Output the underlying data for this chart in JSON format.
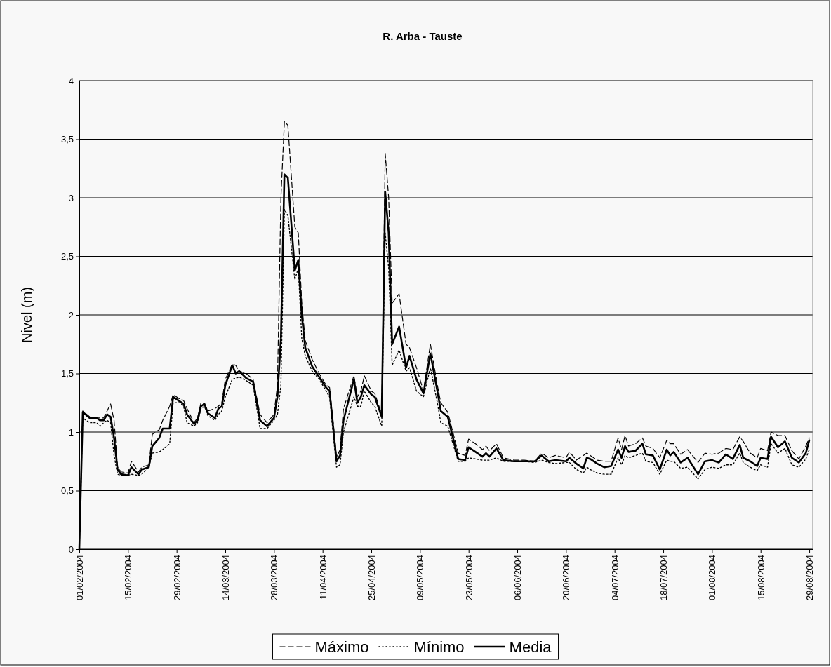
{
  "chart_data": {
    "type": "line",
    "title": "R. Arba - Tauste",
    "ylabel": "Nivel (m)",
    "x": [
      "2004-02-01",
      "2004-02-02",
      "2004-02-04",
      "2004-02-06",
      "2004-02-07",
      "2004-02-08",
      "2004-02-09",
      "2004-02-10",
      "2004-02-11",
      "2004-02-12",
      "2004-02-13",
      "2004-02-15",
      "2004-02-16",
      "2004-02-18",
      "2004-02-19",
      "2004-02-21",
      "2004-02-22",
      "2004-02-24",
      "2004-02-25",
      "2004-02-27",
      "2004-02-28",
      "2004-03-01",
      "2004-03-02",
      "2004-03-03",
      "2004-03-05",
      "2004-03-06",
      "2004-03-07",
      "2004-03-08",
      "2004-03-09",
      "2004-03-11",
      "2004-03-12",
      "2004-03-13",
      "2004-03-14",
      "2004-03-16",
      "2004-03-17",
      "2004-03-18",
      "2004-03-20",
      "2004-03-22",
      "2004-03-24",
      "2004-03-26",
      "2004-03-28",
      "2004-03-29",
      "2004-03-30",
      "2004-03-31",
      "2004-04-01",
      "2004-04-03",
      "2004-04-04",
      "2004-04-05",
      "2004-04-06",
      "2004-04-08",
      "2004-04-10",
      "2004-04-12",
      "2004-04-13",
      "2004-04-14",
      "2004-04-15",
      "2004-04-16",
      "2004-04-17",
      "2004-04-20",
      "2004-04-21",
      "2004-04-22",
      "2004-04-23",
      "2004-04-25",
      "2004-04-26",
      "2004-04-28",
      "2004-04-29",
      "2004-04-30",
      "2004-05-01",
      "2004-05-03",
      "2004-05-05",
      "2004-05-06",
      "2004-05-08",
      "2004-05-10",
      "2004-05-12",
      "2004-05-14",
      "2004-05-15",
      "2004-05-17",
      "2004-05-20",
      "2004-05-22",
      "2004-05-23",
      "2004-05-25",
      "2004-05-27",
      "2004-05-28",
      "2004-05-29",
      "2004-05-31",
      "2004-06-02",
      "2004-06-05",
      "2004-06-08",
      "2004-06-11",
      "2004-06-13",
      "2004-06-15",
      "2004-06-17",
      "2004-06-20",
      "2004-06-21",
      "2004-06-23",
      "2004-06-25",
      "2004-06-26",
      "2004-06-27",
      "2004-06-29",
      "2004-07-01",
      "2004-07-03",
      "2004-07-05",
      "2004-07-06",
      "2004-07-07",
      "2004-07-08",
      "2004-07-10",
      "2004-07-12",
      "2004-07-13",
      "2004-07-15",
      "2004-07-17",
      "2004-07-19",
      "2004-07-20",
      "2004-07-21",
      "2004-07-23",
      "2004-07-25",
      "2004-07-28",
      "2004-07-30",
      "2004-08-01",
      "2004-08-03",
      "2004-08-05",
      "2004-08-07",
      "2004-08-09",
      "2004-08-10",
      "2004-08-12",
      "2004-08-14",
      "2004-08-15",
      "2004-08-17",
      "2004-08-18",
      "2004-08-20",
      "2004-08-22",
      "2004-08-24",
      "2004-08-26",
      "2004-08-28",
      "2004-08-29"
    ],
    "series": [
      {
        "name": "Máximo",
        "color": "#000000",
        "line_style": "dashed",
        "values": [
          0,
          1.18,
          1.13,
          1.12,
          1.12,
          1.12,
          1.18,
          1.24,
          1.1,
          0.7,
          0.66,
          0.65,
          0.75,
          0.66,
          0.7,
          0.72,
          0.98,
          1.02,
          1.1,
          1.22,
          1.32,
          1.28,
          1.27,
          1.2,
          1.08,
          1.12,
          1.25,
          1.24,
          1.18,
          1.2,
          1.22,
          1.25,
          1.45,
          1.58,
          1.57,
          1.52,
          1.5,
          1.45,
          1.15,
          1.08,
          1.15,
          1.4,
          3.0,
          3.65,
          3.62,
          2.75,
          2.7,
          2.1,
          1.78,
          1.62,
          1.5,
          1.4,
          1.38,
          1.1,
          0.78,
          0.85,
          1.2,
          1.48,
          1.3,
          1.35,
          1.48,
          1.35,
          1.33,
          1.15,
          3.38,
          3.0,
          2.1,
          2.18,
          1.75,
          1.72,
          1.55,
          1.35,
          1.75,
          1.4,
          1.25,
          1.17,
          0.82,
          0.8,
          0.94,
          0.9,
          0.85,
          0.88,
          0.84,
          0.9,
          0.78,
          0.76,
          0.76,
          0.75,
          0.82,
          0.78,
          0.8,
          0.78,
          0.83,
          0.76,
          0.8,
          0.82,
          0.8,
          0.76,
          0.75,
          0.75,
          0.95,
          0.85,
          0.97,
          0.88,
          0.9,
          0.95,
          0.88,
          0.86,
          0.78,
          0.93,
          0.9,
          0.9,
          0.81,
          0.85,
          0.74,
          0.82,
          0.81,
          0.82,
          0.86,
          0.85,
          0.96,
          0.92,
          0.82,
          0.78,
          0.86,
          0.84,
          1.0,
          0.97,
          0.97,
          0.84,
          0.77,
          0.88,
          0.95
        ]
      },
      {
        "name": "Mínimo",
        "color": "#000000",
        "line_style": "dotted",
        "values": [
          0,
          1.12,
          1.08,
          1.08,
          1.05,
          1.08,
          1.1,
          1.08,
          0.8,
          0.64,
          0.63,
          0.63,
          0.64,
          0.63,
          0.64,
          0.7,
          0.82,
          0.83,
          0.85,
          0.9,
          1.25,
          1.25,
          1.22,
          1.08,
          1.05,
          1.08,
          1.2,
          1.22,
          1.14,
          1.1,
          1.15,
          1.18,
          1.3,
          1.45,
          1.46,
          1.47,
          1.44,
          1.4,
          1.03,
          1.03,
          1.1,
          1.15,
          1.4,
          2.9,
          2.85,
          2.3,
          2.4,
          1.8,
          1.65,
          1.52,
          1.45,
          1.35,
          1.3,
          1.0,
          0.7,
          0.72,
          1.0,
          1.3,
          1.22,
          1.22,
          1.35,
          1.25,
          1.22,
          1.05,
          2.7,
          2.4,
          1.57,
          1.7,
          1.52,
          1.55,
          1.35,
          1.3,
          1.55,
          1.25,
          1.08,
          1.05,
          0.75,
          0.75,
          0.78,
          0.77,
          0.76,
          0.76,
          0.76,
          0.78,
          0.75,
          0.75,
          0.75,
          0.74,
          0.76,
          0.74,
          0.73,
          0.74,
          0.74,
          0.68,
          0.65,
          0.7,
          0.68,
          0.65,
          0.64,
          0.64,
          0.78,
          0.72,
          0.8,
          0.78,
          0.8,
          0.82,
          0.75,
          0.74,
          0.64,
          0.76,
          0.75,
          0.75,
          0.69,
          0.7,
          0.6,
          0.68,
          0.7,
          0.69,
          0.72,
          0.72,
          0.82,
          0.74,
          0.7,
          0.67,
          0.72,
          0.7,
          0.9,
          0.82,
          0.86,
          0.72,
          0.7,
          0.77,
          0.85
        ]
      },
      {
        "name": "Media",
        "color": "#000000",
        "line_style": "solid",
        "values": [
          0,
          1.17,
          1.12,
          1.12,
          1.1,
          1.1,
          1.15,
          1.13,
          0.95,
          0.68,
          0.64,
          0.63,
          0.7,
          0.64,
          0.68,
          0.7,
          0.88,
          0.95,
          1.03,
          1.03,
          1.3,
          1.26,
          1.24,
          1.15,
          1.07,
          1.1,
          1.22,
          1.24,
          1.16,
          1.12,
          1.2,
          1.22,
          1.4,
          1.57,
          1.5,
          1.52,
          1.46,
          1.43,
          1.1,
          1.05,
          1.12,
          1.3,
          1.8,
          3.2,
          3.17,
          2.38,
          2.47,
          2.0,
          1.72,
          1.56,
          1.47,
          1.38,
          1.35,
          1.05,
          0.75,
          0.8,
          1.1,
          1.45,
          1.25,
          1.3,
          1.4,
          1.32,
          1.3,
          1.13,
          3.05,
          2.7,
          1.75,
          1.9,
          1.55,
          1.65,
          1.45,
          1.33,
          1.67,
          1.35,
          1.18,
          1.13,
          0.77,
          0.76,
          0.87,
          0.83,
          0.79,
          0.82,
          0.79,
          0.86,
          0.76,
          0.75,
          0.75,
          0.75,
          0.8,
          0.75,
          0.76,
          0.75,
          0.78,
          0.73,
          0.69,
          0.78,
          0.77,
          0.73,
          0.7,
          0.71,
          0.85,
          0.78,
          0.88,
          0.83,
          0.84,
          0.9,
          0.81,
          0.8,
          0.68,
          0.85,
          0.8,
          0.83,
          0.74,
          0.78,
          0.64,
          0.75,
          0.76,
          0.74,
          0.81,
          0.77,
          0.89,
          0.78,
          0.75,
          0.71,
          0.78,
          0.77,
          0.96,
          0.87,
          0.92,
          0.78,
          0.74,
          0.82,
          0.93
        ]
      }
    ],
    "xlim": [
      "2004-02-01",
      "2004-08-30"
    ],
    "xticks": [
      {
        "value": "2004-02-01",
        "label": "01/02/2004"
      },
      {
        "value": "2004-02-15",
        "label": "15/02/2004"
      },
      {
        "value": "2004-02-29",
        "label": "29/02/2004"
      },
      {
        "value": "2004-03-14",
        "label": "14/03/2004"
      },
      {
        "value": "2004-03-28",
        "label": "28/03/2004"
      },
      {
        "value": "2004-04-11",
        "label": "11/04/2004"
      },
      {
        "value": "2004-04-25",
        "label": "25/04/2004"
      },
      {
        "value": "2004-05-09",
        "label": "09/05/2004"
      },
      {
        "value": "2004-05-23",
        "label": "23/05/2004"
      },
      {
        "value": "2004-06-06",
        "label": "06/06/2004"
      },
      {
        "value": "2004-06-20",
        "label": "20/06/2004"
      },
      {
        "value": "2004-07-04",
        "label": "04/07/2004"
      },
      {
        "value": "2004-07-18",
        "label": "18/07/2004"
      },
      {
        "value": "2004-08-01",
        "label": "01/08/2004"
      },
      {
        "value": "2004-08-15",
        "label": "15/08/2004"
      },
      {
        "value": "2004-08-29",
        "label": "29/08/2004"
      }
    ],
    "ylim": [
      0,
      4
    ],
    "yticks": [
      0,
      {
        "value": 0.5,
        "label": "0,5"
      },
      1,
      {
        "value": 1.5,
        "label": "1,5"
      },
      2,
      {
        "value": 2.5,
        "label": "2,5"
      },
      3,
      {
        "value": 3.5,
        "label": "3,5"
      },
      4
    ],
    "grid": "y",
    "legend": "bottom",
    "marker": "none"
  }
}
